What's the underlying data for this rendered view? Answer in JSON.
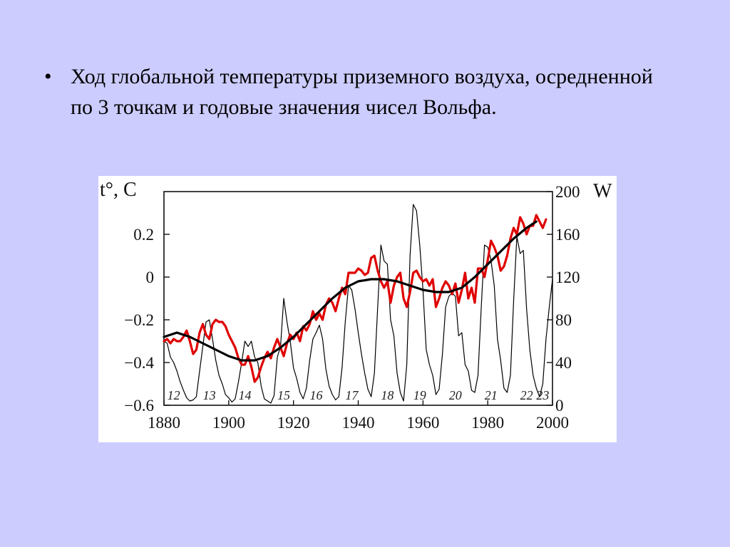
{
  "slide": {
    "bullet_symbol": "•",
    "text": "Ход глобальной температуры приземного воздуха, осредненной по 3 точкам и годовые значения чисел Вольфа."
  },
  "colors": {
    "background": "#ccccff",
    "wolf": "#000000",
    "temperature": "#e00000",
    "smooth": "#000000"
  },
  "chart_data": {
    "type": "line",
    "xlabel": "",
    "ylabel_left": "t°, C",
    "ylabel_right": "W",
    "xlim": [
      1880,
      2000
    ],
    "ylim_left": [
      -0.6,
      0.4
    ],
    "ylim_right": [
      0,
      200
    ],
    "x_ticks": [
      1880,
      1900,
      1920,
      1940,
      1960,
      1980,
      2000
    ],
    "y_left_ticks": [
      {
        "v": -0.6,
        "label": "−0.6"
      },
      {
        "v": -0.4,
        "label": "−0.4"
      },
      {
        "v": -0.2,
        "label": "−0.2"
      },
      {
        "v": 0,
        "label": "0"
      },
      {
        "v": 0.2,
        "label": "0.2"
      }
    ],
    "y_right_ticks": [
      0,
      40,
      80,
      120,
      160,
      200
    ],
    "cycle_labels": [
      {
        "year": 1883,
        "label": "12"
      },
      {
        "year": 1894,
        "label": "13"
      },
      {
        "year": 1905,
        "label": "14"
      },
      {
        "year": 1917,
        "label": "15"
      },
      {
        "year": 1927,
        "label": "16"
      },
      {
        "year": 1938,
        "label": "17"
      },
      {
        "year": 1949,
        "label": "18"
      },
      {
        "year": 1959,
        "label": "19"
      },
      {
        "year": 1970,
        "label": "20"
      },
      {
        "year": 1981,
        "label": "21"
      },
      {
        "year": 1992,
        "label": "22"
      },
      {
        "year": 1997,
        "label": "23"
      }
    ],
    "series": [
      {
        "key": "wolf",
        "axis": "right",
        "points": [
          [
            1880,
            60
          ],
          [
            1881,
            58
          ],
          [
            1882,
            45
          ],
          [
            1883,
            40
          ],
          [
            1884,
            32
          ],
          [
            1885,
            22
          ],
          [
            1886,
            14
          ],
          [
            1887,
            7
          ],
          [
            1888,
            4
          ],
          [
            1889,
            5
          ],
          [
            1890,
            8
          ],
          [
            1891,
            32
          ],
          [
            1892,
            55
          ],
          [
            1893,
            78
          ],
          [
            1894,
            80
          ],
          [
            1895,
            62
          ],
          [
            1896,
            42
          ],
          [
            1897,
            28
          ],
          [
            1898,
            20
          ],
          [
            1899,
            10
          ],
          [
            1900,
            7
          ],
          [
            1901,
            3
          ],
          [
            1902,
            6
          ],
          [
            1903,
            22
          ],
          [
            1904,
            40
          ],
          [
            1905,
            60
          ],
          [
            1906,
            55
          ],
          [
            1907,
            60
          ],
          [
            1908,
            45
          ],
          [
            1909,
            40
          ],
          [
            1910,
            18
          ],
          [
            1911,
            6
          ],
          [
            1912,
            4
          ],
          [
            1913,
            2
          ],
          [
            1914,
            9
          ],
          [
            1915,
            45
          ],
          [
            1916,
            55
          ],
          [
            1917,
            100
          ],
          [
            1918,
            78
          ],
          [
            1919,
            60
          ],
          [
            1920,
            35
          ],
          [
            1921,
            25
          ],
          [
            1922,
            12
          ],
          [
            1923,
            6
          ],
          [
            1924,
            16
          ],
          [
            1925,
            42
          ],
          [
            1926,
            62
          ],
          [
            1927,
            68
          ],
          [
            1928,
            75
          ],
          [
            1929,
            62
          ],
          [
            1930,
            34
          ],
          [
            1931,
            18
          ],
          [
            1932,
            10
          ],
          [
            1933,
            5
          ],
          [
            1934,
            8
          ],
          [
            1935,
            35
          ],
          [
            1936,
            78
          ],
          [
            1937,
            112
          ],
          [
            1938,
            108
          ],
          [
            1939,
            90
          ],
          [
            1940,
            68
          ],
          [
            1941,
            48
          ],
          [
            1942,
            30
          ],
          [
            1943,
            15
          ],
          [
            1944,
            8
          ],
          [
            1945,
            30
          ],
          [
            1946,
            92
          ],
          [
            1947,
            150
          ],
          [
            1948,
            135
          ],
          [
            1949,
            132
          ],
          [
            1950,
            80
          ],
          [
            1951,
            65
          ],
          [
            1952,
            30
          ],
          [
            1953,
            12
          ],
          [
            1954,
            4
          ],
          [
            1955,
            38
          ],
          [
            1956,
            140
          ],
          [
            1957,
            188
          ],
          [
            1958,
            182
          ],
          [
            1959,
            150
          ],
          [
            1960,
            108
          ],
          [
            1961,
            52
          ],
          [
            1962,
            38
          ],
          [
            1963,
            28
          ],
          [
            1964,
            10
          ],
          [
            1965,
            15
          ],
          [
            1966,
            48
          ],
          [
            1967,
            92
          ],
          [
            1968,
            102
          ],
          [
            1969,
            105
          ],
          [
            1970,
            102
          ],
          [
            1971,
            65
          ],
          [
            1972,
            68
          ],
          [
            1973,
            38
          ],
          [
            1974,
            32
          ],
          [
            1975,
            14
          ],
          [
            1976,
            12
          ],
          [
            1977,
            28
          ],
          [
            1978,
            92
          ],
          [
            1979,
            150
          ],
          [
            1980,
            148
          ],
          [
            1981,
            136
          ],
          [
            1982,
            112
          ],
          [
            1983,
            62
          ],
          [
            1984,
            42
          ],
          [
            1985,
            16
          ],
          [
            1986,
            12
          ],
          [
            1987,
            28
          ],
          [
            1988,
            98
          ],
          [
            1989,
            158
          ],
          [
            1990,
            142
          ],
          [
            1991,
            145
          ],
          [
            1992,
            90
          ],
          [
            1993,
            52
          ],
          [
            1994,
            28
          ],
          [
            1995,
            16
          ],
          [
            1996,
            8
          ],
          [
            1997,
            20
          ],
          [
            1998,
            62
          ],
          [
            1999,
            92
          ],
          [
            2000,
            118
          ]
        ]
      },
      {
        "key": "temperature",
        "axis": "left",
        "points": [
          [
            1880,
            -0.3
          ],
          [
            1881,
            -0.29
          ],
          [
            1882,
            -0.31
          ],
          [
            1883,
            -0.29
          ],
          [
            1884,
            -0.3
          ],
          [
            1885,
            -0.3
          ],
          [
            1886,
            -0.28
          ],
          [
            1887,
            -0.25
          ],
          [
            1888,
            -0.3
          ],
          [
            1889,
            -0.36
          ],
          [
            1890,
            -0.34
          ],
          [
            1891,
            -0.26
          ],
          [
            1892,
            -0.22
          ],
          [
            1893,
            -0.27
          ],
          [
            1894,
            -0.29
          ],
          [
            1895,
            -0.22
          ],
          [
            1896,
            -0.2
          ],
          [
            1897,
            -0.21
          ],
          [
            1898,
            -0.21
          ],
          [
            1899,
            -0.23
          ],
          [
            1900,
            -0.27
          ],
          [
            1901,
            -0.3
          ],
          [
            1902,
            -0.33
          ],
          [
            1903,
            -0.38
          ],
          [
            1904,
            -0.41
          ],
          [
            1905,
            -0.41
          ],
          [
            1906,
            -0.37
          ],
          [
            1907,
            -0.42
          ],
          [
            1908,
            -0.49
          ],
          [
            1909,
            -0.47
          ],
          [
            1910,
            -0.42
          ],
          [
            1911,
            -0.38
          ],
          [
            1912,
            -0.35
          ],
          [
            1913,
            -0.38
          ],
          [
            1914,
            -0.33
          ],
          [
            1915,
            -0.29
          ],
          [
            1916,
            -0.33
          ],
          [
            1917,
            -0.37
          ],
          [
            1918,
            -0.31
          ],
          [
            1919,
            -0.27
          ],
          [
            1920,
            -0.29
          ],
          [
            1921,
            -0.26
          ],
          [
            1922,
            -0.3
          ],
          [
            1923,
            -0.23
          ],
          [
            1924,
            -0.25
          ],
          [
            1925,
            -0.22
          ],
          [
            1926,
            -0.16
          ],
          [
            1927,
            -0.2
          ],
          [
            1928,
            -0.17
          ],
          [
            1929,
            -0.2
          ],
          [
            1930,
            -0.13
          ],
          [
            1931,
            -0.1
          ],
          [
            1932,
            -0.12
          ],
          [
            1933,
            -0.16
          ],
          [
            1934,
            -0.1
          ],
          [
            1935,
            -0.05
          ],
          [
            1936,
            -0.08
          ],
          [
            1937,
            0.02
          ],
          [
            1938,
            0.02
          ],
          [
            1939,
            0.02
          ],
          [
            1940,
            0.04
          ],
          [
            1941,
            0.03
          ],
          [
            1942,
            0.01
          ],
          [
            1943,
            0.02
          ],
          [
            1944,
            0.09
          ],
          [
            1945,
            0.1
          ],
          [
            1946,
            0.03
          ],
          [
            1947,
            -0.02
          ],
          [
            1948,
            -0.05
          ],
          [
            1949,
            -0.02
          ],
          [
            1950,
            -0.12
          ],
          [
            1951,
            -0.04
          ],
          [
            1952,
            0.0
          ],
          [
            1953,
            0.02
          ],
          [
            1954,
            -0.1
          ],
          [
            1955,
            -0.14
          ],
          [
            1956,
            -0.07
          ],
          [
            1957,
            0.02
          ],
          [
            1958,
            0.03
          ],
          [
            1959,
            0.0
          ],
          [
            1960,
            -0.02
          ],
          [
            1961,
            -0.01
          ],
          [
            1962,
            -0.04
          ],
          [
            1963,
            -0.01
          ],
          [
            1964,
            -0.14
          ],
          [
            1965,
            -0.1
          ],
          [
            1966,
            -0.05
          ],
          [
            1967,
            -0.02
          ],
          [
            1968,
            -0.04
          ],
          [
            1969,
            -0.08
          ],
          [
            1970,
            -0.03
          ],
          [
            1971,
            -0.12
          ],
          [
            1972,
            -0.06
          ],
          [
            1973,
            0.02
          ],
          [
            1974,
            -0.1
          ],
          [
            1975,
            -0.05
          ],
          [
            1976,
            -0.12
          ],
          [
            1977,
            0.04
          ],
          [
            1978,
            0.04
          ],
          [
            1979,
            0.0
          ],
          [
            1980,
            0.08
          ],
          [
            1981,
            0.17
          ],
          [
            1982,
            0.14
          ],
          [
            1983,
            0.1
          ],
          [
            1984,
            0.03
          ],
          [
            1985,
            0.05
          ],
          [
            1986,
            0.1
          ],
          [
            1987,
            0.18
          ],
          [
            1988,
            0.23
          ],
          [
            1989,
            0.2
          ],
          [
            1990,
            0.28
          ],
          [
            1991,
            0.25
          ],
          [
            1992,
            0.2
          ],
          [
            1993,
            0.24
          ],
          [
            1994,
            0.24
          ],
          [
            1995,
            0.29
          ],
          [
            1996,
            0.26
          ],
          [
            1997,
            0.23
          ],
          [
            1998,
            0.27
          ]
        ]
      },
      {
        "key": "smooth",
        "axis": "left",
        "points": [
          [
            1880,
            -0.28
          ],
          [
            1884,
            -0.26
          ],
          [
            1888,
            -0.28
          ],
          [
            1892,
            -0.31
          ],
          [
            1896,
            -0.34
          ],
          [
            1900,
            -0.37
          ],
          [
            1904,
            -0.39
          ],
          [
            1908,
            -0.39
          ],
          [
            1912,
            -0.37
          ],
          [
            1916,
            -0.33
          ],
          [
            1920,
            -0.28
          ],
          [
            1924,
            -0.22
          ],
          [
            1928,
            -0.16
          ],
          [
            1932,
            -0.1
          ],
          [
            1936,
            -0.05
          ],
          [
            1940,
            -0.02
          ],
          [
            1944,
            -0.01
          ],
          [
            1948,
            -0.01
          ],
          [
            1952,
            -0.02
          ],
          [
            1956,
            -0.04
          ],
          [
            1960,
            -0.06
          ],
          [
            1964,
            -0.07
          ],
          [
            1968,
            -0.07
          ],
          [
            1972,
            -0.05
          ],
          [
            1976,
            0.0
          ],
          [
            1980,
            0.06
          ],
          [
            1984,
            0.12
          ],
          [
            1988,
            0.18
          ],
          [
            1992,
            0.23
          ],
          [
            1995,
            0.26
          ]
        ]
      }
    ]
  }
}
